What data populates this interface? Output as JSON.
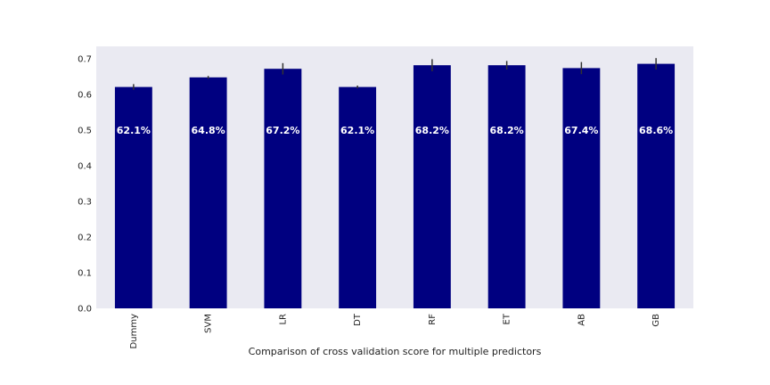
{
  "chart_data": {
    "type": "bar",
    "categories": [
      "Dummy",
      "SVM",
      "LR",
      "DT",
      "RF",
      "ET",
      "AB",
      "GB"
    ],
    "values": [
      0.621,
      0.648,
      0.672,
      0.621,
      0.682,
      0.682,
      0.674,
      0.686
    ],
    "errors": [
      0.008,
      0.004,
      0.016,
      0.004,
      0.017,
      0.012,
      0.017,
      0.016
    ],
    "data_labels": [
      "62.1%",
      "64.8%",
      "67.2%",
      "62.1%",
      "68.2%",
      "68.2%",
      "67.4%",
      "68.6%"
    ],
    "xlabel": "Comparison of cross validation score for multiple predictors",
    "ylabel": "",
    "ylim": [
      0,
      0.7
    ],
    "yticks": [
      "0.0",
      "0.1",
      "0.2",
      "0.3",
      "0.4",
      "0.5",
      "0.6",
      "0.7"
    ],
    "grid": false,
    "colors": {
      "bar": "#000080",
      "plot_bg": "#eaeaf2",
      "error_bar": "#333333"
    }
  }
}
